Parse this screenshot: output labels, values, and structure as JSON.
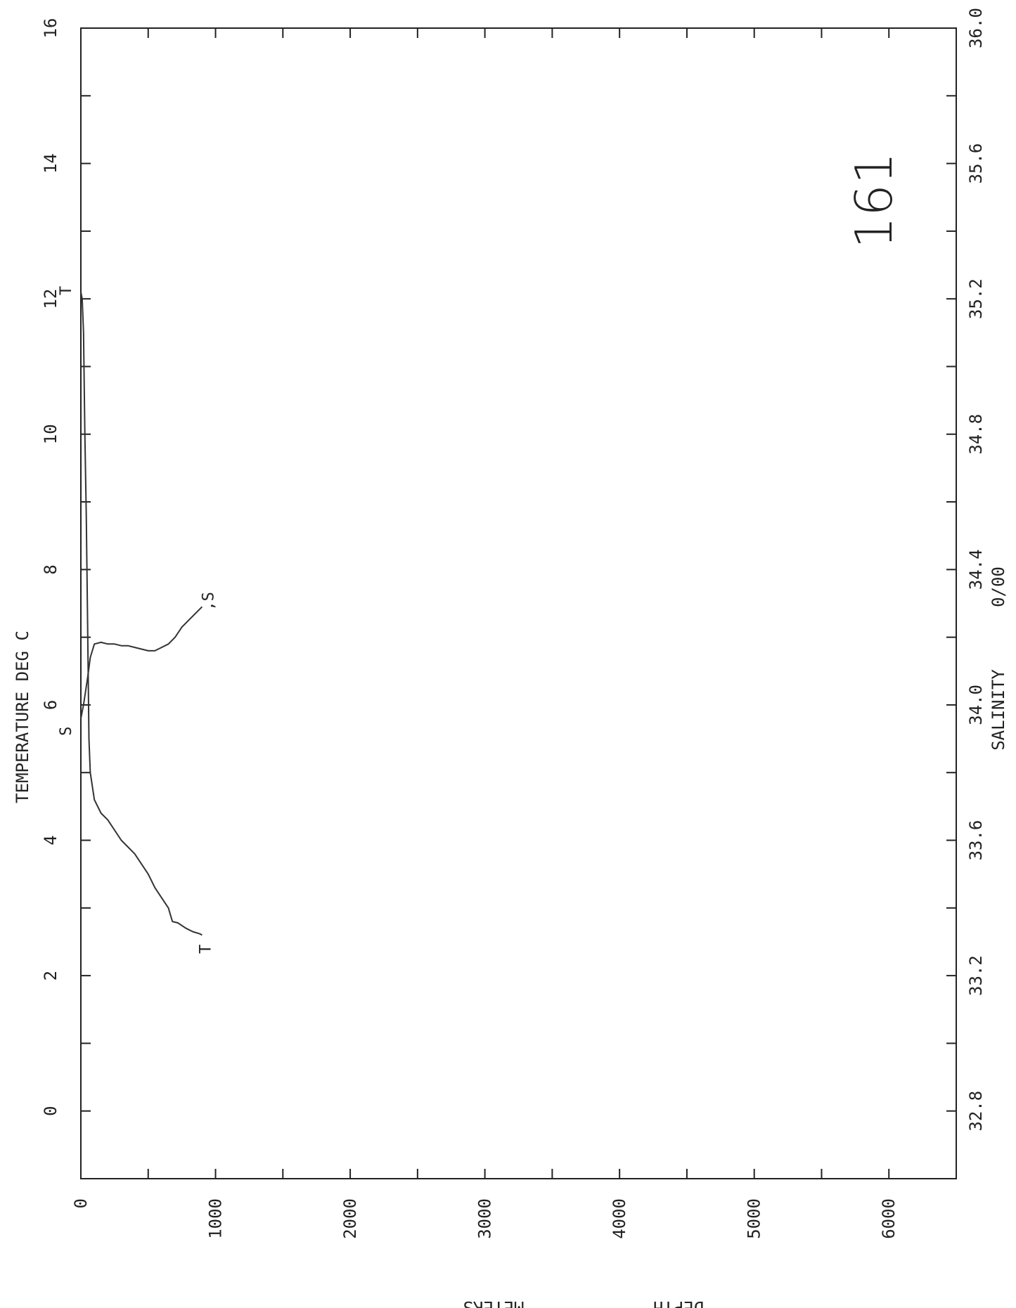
{
  "chart_data": {
    "type": "line",
    "orientation": "rotated 90 degrees counter-clockwise",
    "station_label": "161",
    "x_axis": {
      "label_line1": "DEPTH",
      "label_line2": "METERS",
      "range": [
        0,
        6500
      ],
      "tick_labels": [
        "0",
        "1000",
        "2000",
        "3000",
        "4000",
        "5000",
        "6000"
      ],
      "tick_values": [
        0,
        1000,
        2000,
        3000,
        4000,
        5000,
        6000
      ]
    },
    "temperature_axis": {
      "label": "TEMPERATURE DEG C",
      "range": [
        -1,
        16
      ],
      "tick_labels": [
        "0",
        "2",
        "4",
        "6",
        "8",
        "10",
        "12",
        "14",
        "16"
      ],
      "tick_values": [
        0,
        2,
        4,
        6,
        8,
        10,
        12,
        14,
        16
      ]
    },
    "salinity_axis": {
      "label_line1": "SALINITY",
      "label_line2": "0/00",
      "range": [
        32.6,
        36.0
      ],
      "tick_labels": [
        "32.8",
        "33.2",
        "33.6",
        "34.0",
        "34.4",
        "34.8",
        "35.2",
        "35.6",
        "36.0"
      ],
      "tick_values": [
        32.8,
        33.2,
        33.6,
        34.0,
        34.4,
        34.8,
        35.2,
        35.6,
        36.0
      ]
    },
    "series": [
      {
        "name": "T",
        "start_label": "T",
        "end_label": "T",
        "axis": "temperature",
        "points": [
          [
            0,
            12.1
          ],
          [
            10,
            12.0
          ],
          [
            20,
            11.5
          ],
          [
            30,
            10.0
          ],
          [
            40,
            8.8
          ],
          [
            50,
            7.2
          ],
          [
            60,
            5.5
          ],
          [
            70,
            5.0
          ],
          [
            100,
            4.6
          ],
          [
            150,
            4.4
          ],
          [
            200,
            4.3
          ],
          [
            300,
            4.0
          ],
          [
            400,
            3.8
          ],
          [
            500,
            3.5
          ],
          [
            550,
            3.3
          ],
          [
            600,
            3.15
          ],
          [
            650,
            3.0
          ],
          [
            680,
            2.8
          ],
          [
            720,
            2.78
          ],
          [
            780,
            2.7
          ],
          [
            830,
            2.65
          ],
          [
            880,
            2.62
          ],
          [
            900,
            2.6
          ]
        ]
      },
      {
        "name": "S",
        "start_label": "S",
        "end_label": ",S",
        "axis": "salinity",
        "points": [
          [
            0,
            33.96
          ],
          [
            20,
            34.0
          ],
          [
            50,
            34.08
          ],
          [
            70,
            34.14
          ],
          [
            100,
            34.18
          ],
          [
            150,
            34.185
          ],
          [
            200,
            34.18
          ],
          [
            250,
            34.18
          ],
          [
            300,
            34.175
          ],
          [
            350,
            34.175
          ],
          [
            400,
            34.17
          ],
          [
            450,
            34.165
          ],
          [
            500,
            34.16
          ],
          [
            550,
            34.16
          ],
          [
            600,
            34.17
          ],
          [
            650,
            34.18
          ],
          [
            700,
            34.2
          ],
          [
            750,
            34.23
          ],
          [
            800,
            34.25
          ],
          [
            850,
            34.27
          ],
          [
            900,
            34.29
          ]
        ]
      }
    ]
  }
}
